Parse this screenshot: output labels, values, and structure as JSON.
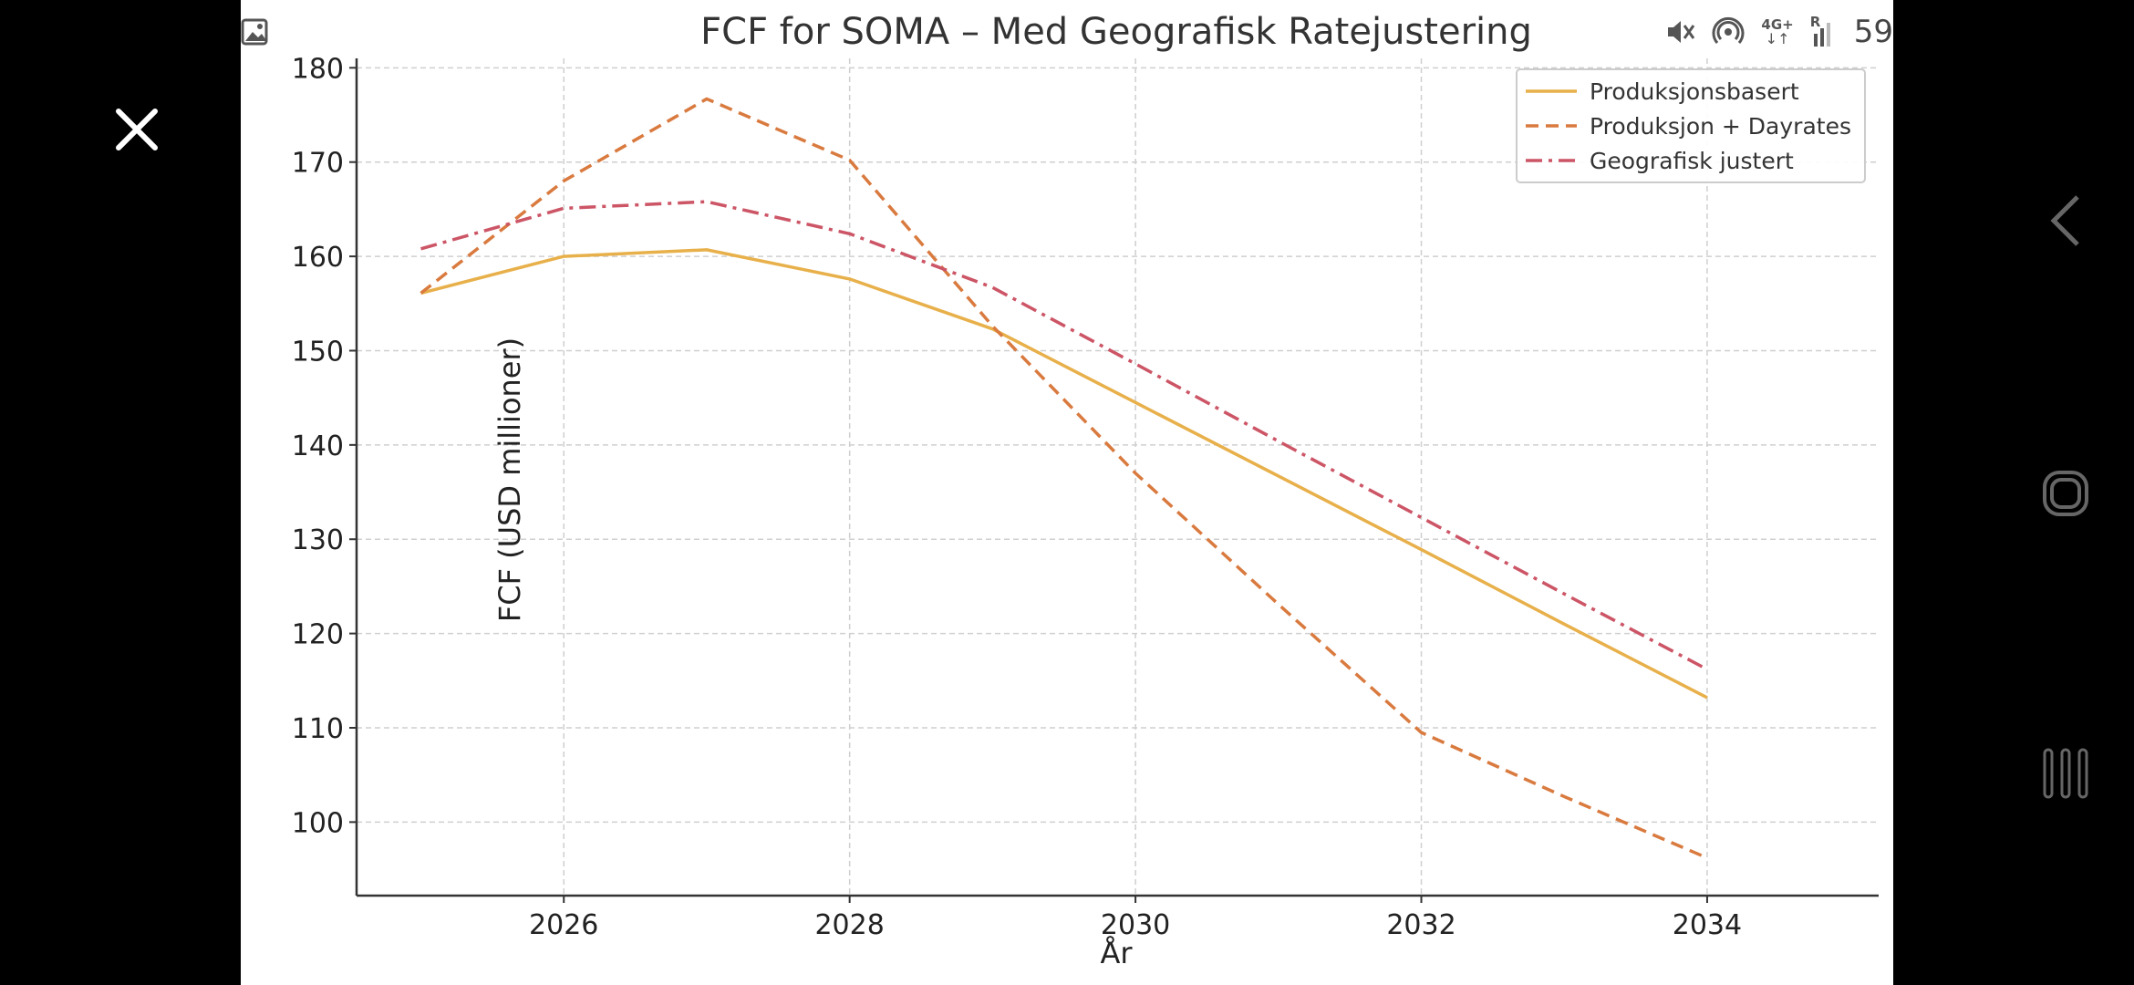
{
  "viewer": {
    "close_icon": "close-icon",
    "gallery_icon": "image-icon"
  },
  "status_bar": {
    "battery_text": "59",
    "network_label": "4G+",
    "roaming_label": "R",
    "icons": [
      "mute-icon",
      "hotspot-icon",
      "network-4g-icon",
      "signal-icon"
    ]
  },
  "nav": {
    "back_icon": "back-chevron-icon",
    "home_icon": "home-icon",
    "recents_icon": "recents-icon"
  },
  "colors": {
    "produksjon": "#e8b04a",
    "dayrates": "#d97a3f",
    "geografisk": "#cc5566",
    "grid": "#cfcfcf",
    "axis": "#333333"
  },
  "chart_data": {
    "type": "line",
    "title": "FCF for SOMA – Med Geografisk Ratejustering",
    "xlabel": "År",
    "ylabel": "FCF (USD millioner)",
    "x": [
      2025,
      2026,
      2027,
      2028,
      2029,
      2030,
      2031,
      2032,
      2033,
      2034
    ],
    "xlim": [
      2024.55,
      2035.2
    ],
    "ylim": [
      92.2,
      181.0
    ],
    "xticks": [
      2026,
      2028,
      2030,
      2032,
      2034
    ],
    "yticks": [
      100,
      110,
      120,
      130,
      140,
      150,
      160,
      170,
      180
    ],
    "grid": true,
    "legend_position": "top-right",
    "series": [
      {
        "name": "Produksjonsbasert",
        "style": "solid",
        "values": [
          156.1,
          160.0,
          160.7,
          157.6,
          152.3,
          144.5,
          136.7,
          128.9,
          121.0,
          113.2
        ]
      },
      {
        "name": "Produksjon + Dayrates",
        "style": "dashed",
        "values": [
          156.1,
          168.0,
          176.7,
          170.2,
          152.6,
          137.0,
          123.1,
          109.5,
          102.7,
          96.2
        ]
      },
      {
        "name": "Geografisk justert",
        "style": "dashdot",
        "values": [
          160.8,
          165.1,
          165.8,
          162.4,
          156.7,
          148.6,
          140.4,
          132.3,
          124.2,
          116.2
        ]
      }
    ]
  }
}
